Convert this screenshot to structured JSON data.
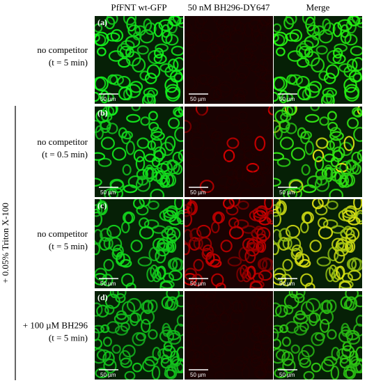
{
  "columns": [
    "PfFNT wt-GFP",
    "50 nM BH296-DY647",
    "Merge"
  ],
  "rows": [
    {
      "panel": "(a)",
      "lines": [
        "no competitor",
        "(t = 5 min)"
      ]
    },
    {
      "panel": "(b)",
      "lines": [
        "no competitor",
        "(t = 0.5 min)"
      ]
    },
    {
      "panel": "(c)",
      "lines": [
        "no competitor",
        "(t = 5 min)"
      ]
    },
    {
      "panel": "(d)",
      "lines": [
        "+ 100 µM BH296",
        "(t = 5 min)"
      ]
    }
  ],
  "scale_bar": "50 µm",
  "side_label": "+ 0.05% Triton X-100"
}
